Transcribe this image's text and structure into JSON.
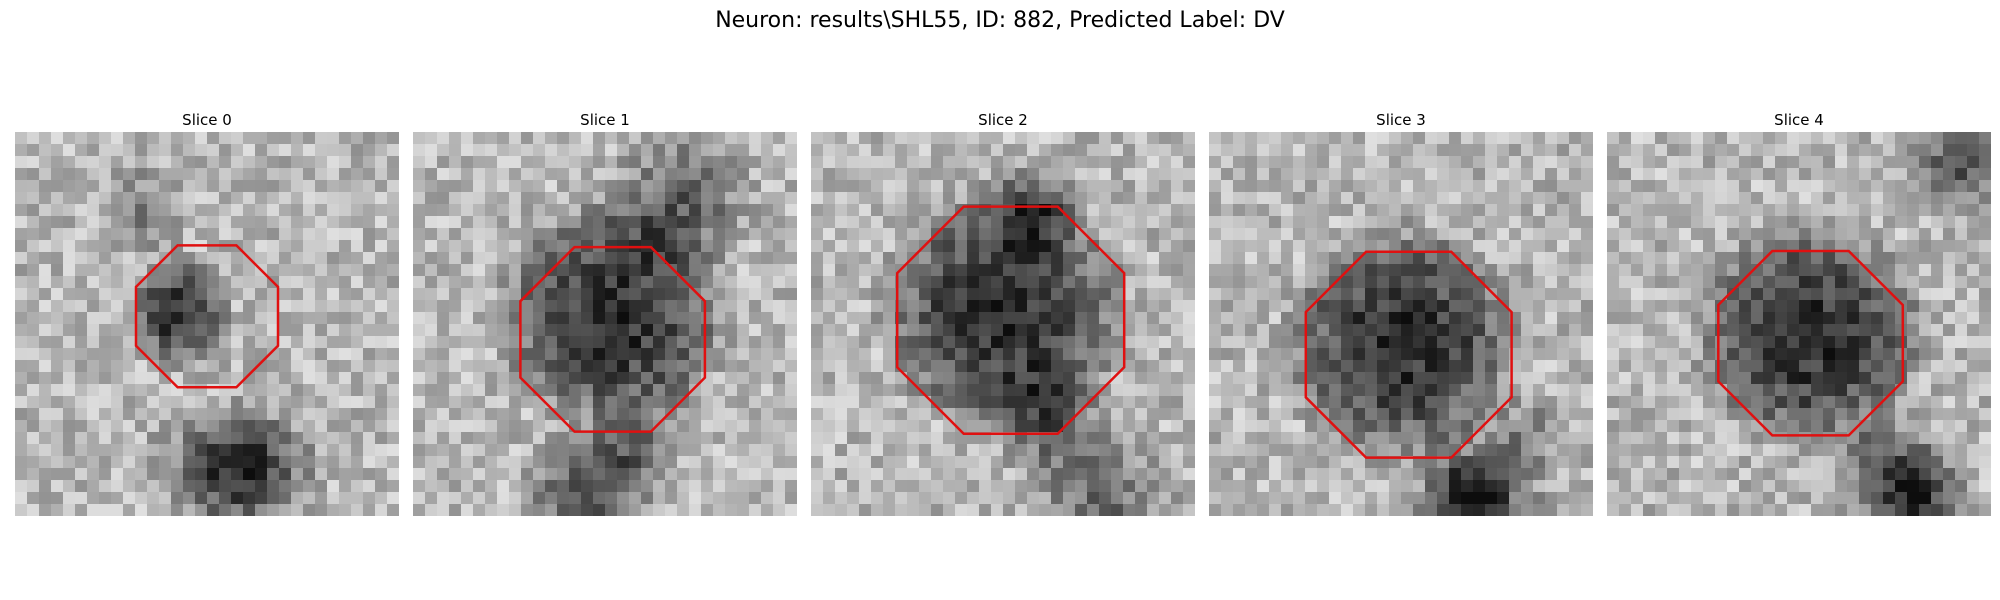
{
  "title": "Neuron: results\\SHL55, ID: 882, Predicted Label: DV",
  "slices": [
    {
      "label": "Slice 0",
      "cell_center": [
        0.43,
        0.47
      ],
      "cell_radius": 0.13,
      "contour_center": [
        0.5,
        0.48
      ],
      "contour_radius": 0.2
    },
    {
      "label": "Slice 1",
      "cell_center": [
        0.52,
        0.48
      ],
      "cell_radius": 0.28,
      "contour_center": [
        0.52,
        0.54
      ],
      "contour_radius": 0.26
    },
    {
      "label": "Slice 2",
      "cell_center": [
        0.5,
        0.47
      ],
      "cell_radius": 0.3,
      "contour_center": [
        0.52,
        0.49
      ],
      "contour_radius": 0.32
    },
    {
      "label": "Slice 3",
      "cell_center": [
        0.5,
        0.55
      ],
      "cell_radius": 0.29,
      "contour_center": [
        0.52,
        0.58
      ],
      "contour_radius": 0.29
    },
    {
      "label": "Slice 4",
      "cell_center": [
        0.53,
        0.53
      ],
      "cell_radius": 0.28,
      "contour_center": [
        0.53,
        0.55
      ],
      "contour_radius": 0.26
    }
  ],
  "colors": {
    "contour": "#e01010",
    "background_gray": "#bdbdbd",
    "cell_dark": "#3a3a3a"
  },
  "icons": {
    "image": "grayscale-microscopy-slice",
    "outline": "red-octagon-contour"
  }
}
